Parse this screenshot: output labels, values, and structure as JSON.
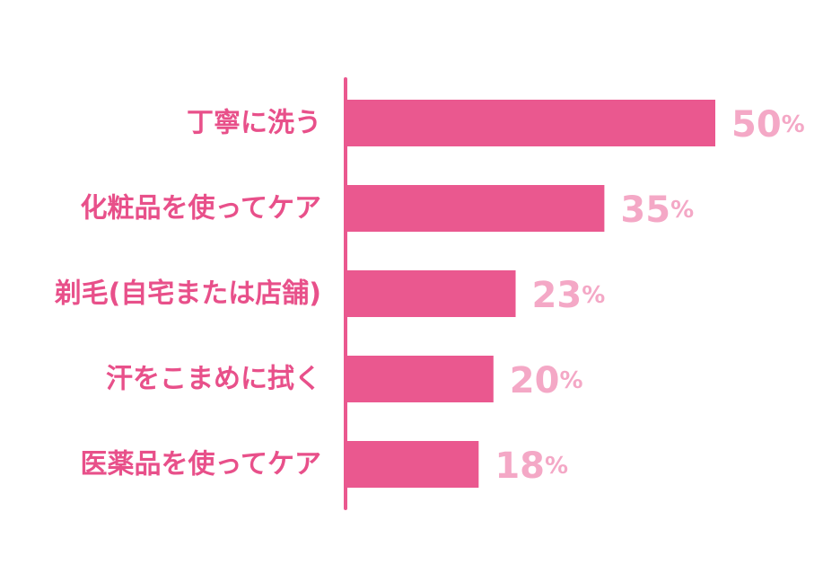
{
  "chart_data": {
    "type": "bar",
    "orientation": "horizontal",
    "title": "",
    "xlabel": "",
    "ylabel": "",
    "categories": [
      "丁寧に洗う",
      "化粧品を使ってケア",
      "剃毛(自宅または店舗)",
      "汗をこまめに拭く",
      "医薬品を使ってケア"
    ],
    "values": [
      50,
      35,
      23,
      20,
      18
    ],
    "value_unit": "%",
    "xlim": [
      0,
      50
    ],
    "grid": false,
    "legend": "none",
    "colors": {
      "bar": "#EA588F",
      "axis": "#EA588F",
      "category_label": "#E8508A",
      "value_label": "#F4A8C6"
    }
  }
}
